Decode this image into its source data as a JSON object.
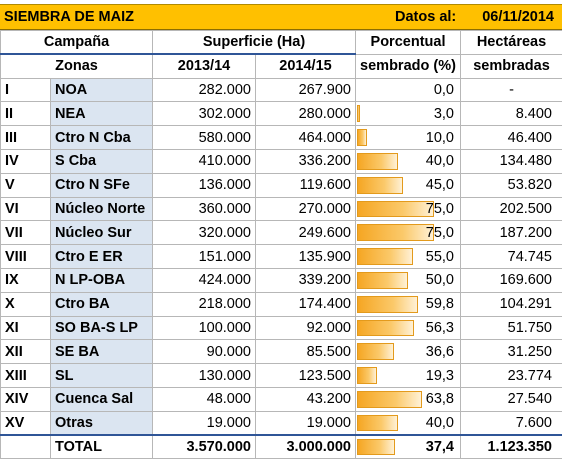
{
  "title": {
    "left": "SIEMBRA DE MAIZ",
    "date_label": "Datos al:",
    "date_value": "06/11/2014"
  },
  "headers": {
    "campana": "Campaña",
    "zonas": "Zonas",
    "superficie": "Superficie (Ha)",
    "y1": "2013/14",
    "y2": "2014/15",
    "pct_line1": "Porcentual",
    "pct_line2": "sembrado (%)",
    "ha_line1": "Hectáreas",
    "ha_line2": "sembradas"
  },
  "rows": [
    {
      "num": "I",
      "zone": "NOA",
      "y1": "282.000",
      "y2": "267.900",
      "pct": "0,0",
      "pct_value": 0.0,
      "ha": "-"
    },
    {
      "num": "II",
      "zone": "NEA",
      "y1": "302.000",
      "y2": "280.000",
      "pct": "3,0",
      "pct_value": 3.0,
      "ha": "8.400"
    },
    {
      "num": "III",
      "zone": "Ctro N Cba",
      "y1": "580.000",
      "y2": "464.000",
      "pct": "10,0",
      "pct_value": 10.0,
      "ha": "46.400"
    },
    {
      "num": "IV",
      "zone": "S Cba",
      "y1": "410.000",
      "y2": "336.200",
      "pct": "40,0",
      "pct_value": 40.0,
      "ha": "134.480"
    },
    {
      "num": "V",
      "zone": "Ctro N SFe",
      "y1": "136.000",
      "y2": "119.600",
      "pct": "45,0",
      "pct_value": 45.0,
      "ha": "53.820"
    },
    {
      "num": "VI",
      "zone": "Núcleo Norte",
      "y1": "360.000",
      "y2": "270.000",
      "pct": "75,0",
      "pct_value": 75.0,
      "ha": "202.500"
    },
    {
      "num": "VII",
      "zone": "Núcleo Sur",
      "y1": "320.000",
      "y2": "249.600",
      "pct": "75,0",
      "pct_value": 75.0,
      "ha": "187.200"
    },
    {
      "num": "VIII",
      "zone": "Ctro E ER",
      "y1": "151.000",
      "y2": "135.900",
      "pct": "55,0",
      "pct_value": 55.0,
      "ha": "74.745"
    },
    {
      "num": "IX",
      "zone": "N LP-OBA",
      "y1": "424.000",
      "y2": "339.200",
      "pct": "50,0",
      "pct_value": 50.0,
      "ha": "169.600"
    },
    {
      "num": "X",
      "zone": "Ctro BA",
      "y1": "218.000",
      "y2": "174.400",
      "pct": "59,8",
      "pct_value": 59.8,
      "ha": "104.291"
    },
    {
      "num": "XI",
      "zone": "SO BA-S LP",
      "y1": "100.000",
      "y2": "92.000",
      "pct": "56,3",
      "pct_value": 56.3,
      "ha": "51.750"
    },
    {
      "num": "XII",
      "zone": "SE BA",
      "y1": "90.000",
      "y2": "85.500",
      "pct": "36,6",
      "pct_value": 36.6,
      "ha": "31.250"
    },
    {
      "num": "XIII",
      "zone": "SL",
      "y1": "130.000",
      "y2": "123.500",
      "pct": "19,3",
      "pct_value": 19.3,
      "ha": "23.774"
    },
    {
      "num": "XIV",
      "zone": "Cuenca Sal",
      "y1": "48.000",
      "y2": "43.200",
      "pct": "63,8",
      "pct_value": 63.8,
      "ha": "27.540"
    },
    {
      "num": "XV",
      "zone": "Otras",
      "y1": "19.000",
      "y2": "19.000",
      "pct": "40,0",
      "pct_value": 40.0,
      "ha": "7.600"
    }
  ],
  "total": {
    "label": "TOTAL",
    "y1": "3.570.000",
    "y2": "3.000.000",
    "pct": "37,4",
    "pct_value": 37.4,
    "ha": "1.123.350"
  },
  "colors": {
    "title_bg": "#ffc000",
    "zone_bg": "#dbe5f1",
    "bar": "#f5a623",
    "rule": "#2f5597"
  }
}
